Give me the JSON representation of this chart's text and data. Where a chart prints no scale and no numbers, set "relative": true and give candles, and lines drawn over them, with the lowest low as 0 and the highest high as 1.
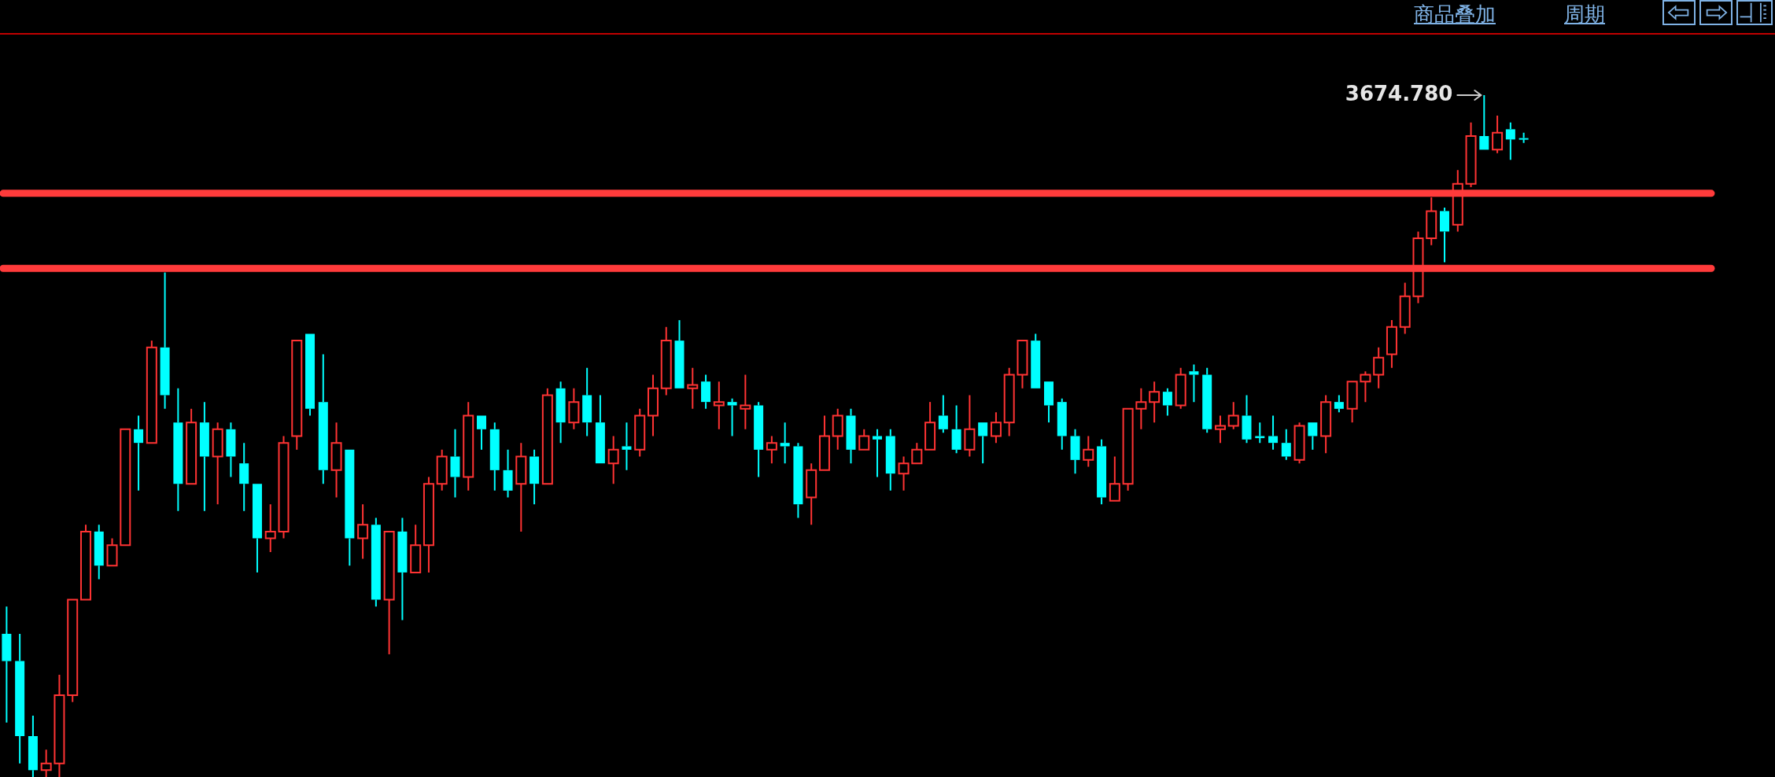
{
  "chart_data": {
    "type": "candlestick",
    "relative": true,
    "annotations": [
      "商品叠加",
      "周期",
      "3674.780"
    ],
    "ref_lines": [
      {
        "axis": "y",
        "value": 0.746,
        "color": "#ff3b3b"
      },
      {
        "axis": "y",
        "value": 0.856,
        "color": "#ff3b3b"
      }
    ],
    "categories": [
      null,
      null,
      null,
      null,
      null,
      null,
      null,
      null,
      null,
      null,
      null,
      null,
      null,
      null,
      null,
      null,
      null,
      null,
      null,
      null,
      null,
      null,
      null,
      null,
      null,
      null,
      null,
      null,
      null,
      null,
      null,
      null,
      null,
      null,
      null,
      null,
      null,
      null,
      null,
      null,
      null,
      null,
      null,
      null,
      null,
      null,
      null,
      null,
      null,
      null,
      null,
      null,
      null,
      null,
      null,
      null,
      null,
      null,
      null,
      null,
      null,
      null,
      null,
      null,
      null,
      null,
      null,
      null,
      null,
      null,
      null,
      null,
      null,
      null,
      null,
      null,
      null,
      null,
      null,
      null,
      null,
      null,
      null,
      null,
      null,
      null,
      null,
      null,
      null,
      null,
      null,
      null,
      null,
      null,
      null,
      null,
      null,
      null,
      null,
      null,
      null,
      null,
      null,
      null,
      null,
      null,
      null,
      null,
      null,
      null,
      null,
      null,
      null,
      null,
      null,
      null
    ],
    "ohlc": [
      [
        0.21,
        0.25,
        0.08,
        0.17
      ],
      [
        0.17,
        0.21,
        0.02,
        0.06
      ],
      [
        0.06,
        0.09,
        0,
        0.01
      ],
      [
        0.01,
        0.04,
        0,
        0.02
      ],
      [
        0.02,
        0.15,
        0,
        0.12
      ],
      [
        0.12,
        0.26,
        0.11,
        0.26
      ],
      [
        0.26,
        0.37,
        0.26,
        0.36
      ],
      [
        0.36,
        0.37,
        0.29,
        0.31
      ],
      [
        0.31,
        0.35,
        0.31,
        0.34
      ],
      [
        0.34,
        0.51,
        0.34,
        0.51
      ],
      [
        0.51,
        0.53,
        0.42,
        0.49
      ],
      [
        0.49,
        0.64,
        0.49,
        0.63
      ],
      [
        0.63,
        0.74,
        0.54,
        0.56
      ],
      [
        0.52,
        0.57,
        0.39,
        0.43
      ],
      [
        0.43,
        0.54,
        0.43,
        0.52
      ],
      [
        0.52,
        0.55,
        0.39,
        0.47
      ],
      [
        0.47,
        0.52,
        0.4,
        0.51
      ],
      [
        0.51,
        0.52,
        0.44,
        0.47
      ],
      [
        0.46,
        0.49,
        0.39,
        0.43
      ],
      [
        0.43,
        0.43,
        0.3,
        0.35
      ],
      [
        0.35,
        0.4,
        0.33,
        0.36
      ],
      [
        0.36,
        0.5,
        0.35,
        0.49
      ],
      [
        0.5,
        0.64,
        0.48,
        0.64
      ],
      [
        0.65,
        0.65,
        0.53,
        0.54
      ],
      [
        0.55,
        0.62,
        0.43,
        0.45
      ],
      [
        0.45,
        0.52,
        0.41,
        0.49
      ],
      [
        0.48,
        0.48,
        0.31,
        0.35
      ],
      [
        0.35,
        0.4,
        0.32,
        0.37
      ],
      [
        0.37,
        0.38,
        0.25,
        0.26
      ],
      [
        0.26,
        0.36,
        0.18,
        0.36
      ],
      [
        0.36,
        0.38,
        0.23,
        0.3
      ],
      [
        0.3,
        0.37,
        0.3,
        0.34
      ],
      [
        0.34,
        0.44,
        0.3,
        0.43
      ],
      [
        0.43,
        0.48,
        0.42,
        0.47
      ],
      [
        0.47,
        0.51,
        0.41,
        0.44
      ],
      [
        0.44,
        0.55,
        0.42,
        0.53
      ],
      [
        0.53,
        0.53,
        0.48,
        0.51
      ],
      [
        0.51,
        0.52,
        0.42,
        0.45
      ],
      [
        0.45,
        0.48,
        0.41,
        0.42
      ],
      [
        0.43,
        0.49,
        0.36,
        0.47
      ],
      [
        0.47,
        0.48,
        0.4,
        0.43
      ],
      [
        0.43,
        0.57,
        0.43,
        0.56
      ],
      [
        0.57,
        0.58,
        0.49,
        0.52
      ],
      [
        0.52,
        0.57,
        0.51,
        0.55
      ],
      [
        0.56,
        0.6,
        0.5,
        0.52
      ],
      [
        0.52,
        0.56,
        0.46,
        0.46
      ],
      [
        0.46,
        0.5,
        0.43,
        0.48
      ],
      [
        0.485,
        0.52,
        0.45,
        0.48
      ],
      [
        0.48,
        0.54,
        0.47,
        0.53
      ],
      [
        0.53,
        0.59,
        0.5,
        0.57
      ],
      [
        0.57,
        0.66,
        0.56,
        0.64
      ],
      [
        0.64,
        0.67,
        0.57,
        0.57
      ],
      [
        0.57,
        0.6,
        0.54,
        0.575
      ],
      [
        0.58,
        0.59,
        0.54,
        0.55
      ],
      [
        0.545,
        0.58,
        0.51,
        0.55
      ],
      [
        0.55,
        0.555,
        0.5,
        0.545
      ],
      [
        0.54,
        0.59,
        0.51,
        0.545
      ],
      [
        0.545,
        0.55,
        0.44,
        0.48
      ],
      [
        0.48,
        0.5,
        0.46,
        0.49
      ],
      [
        0.49,
        0.52,
        0.46,
        0.485
      ],
      [
        0.485,
        0.49,
        0.38,
        0.4
      ],
      [
        0.41,
        0.46,
        0.37,
        0.45
      ],
      [
        0.45,
        0.53,
        0.45,
        0.5
      ],
      [
        0.5,
        0.54,
        0.48,
        0.53
      ],
      [
        0.53,
        0.54,
        0.46,
        0.48
      ],
      [
        0.48,
        0.51,
        0.48,
        0.5
      ],
      [
        0.5,
        0.51,
        0.44,
        0.495
      ],
      [
        0.5,
        0.51,
        0.42,
        0.445
      ],
      [
        0.445,
        0.47,
        0.42,
        0.46
      ],
      [
        0.46,
        0.49,
        0.46,
        0.48
      ],
      [
        0.48,
        0.55,
        0.48,
        0.52
      ],
      [
        0.53,
        0.56,
        0.505,
        0.51
      ],
      [
        0.51,
        0.545,
        0.475,
        0.48
      ],
      [
        0.48,
        0.56,
        0.47,
        0.51
      ],
      [
        0.52,
        0.52,
        0.46,
        0.5
      ],
      [
        0.5,
        0.535,
        0.49,
        0.52
      ],
      [
        0.52,
        0.6,
        0.5,
        0.59
      ],
      [
        0.59,
        0.64,
        0.57,
        0.64
      ],
      [
        0.64,
        0.65,
        0.57,
        0.57
      ],
      [
        0.58,
        0.58,
        0.52,
        0.545
      ],
      [
        0.55,
        0.555,
        0.48,
        0.5
      ],
      [
        0.5,
        0.51,
        0.445,
        0.465
      ],
      [
        0.465,
        0.5,
        0.455,
        0.48
      ],
      [
        0.485,
        0.495,
        0.4,
        0.41
      ],
      [
        0.405,
        0.47,
        0.405,
        0.43
      ],
      [
        0.43,
        0.54,
        0.42,
        0.54
      ],
      [
        0.54,
        0.57,
        0.51,
        0.55
      ],
      [
        0.55,
        0.58,
        0.52,
        0.565
      ],
      [
        0.565,
        0.57,
        0.53,
        0.545
      ],
      [
        0.545,
        0.6,
        0.54,
        0.59
      ],
      [
        0.595,
        0.605,
        0.55,
        0.59
      ],
      [
        0.59,
        0.6,
        0.505,
        0.51
      ],
      [
        0.51,
        0.53,
        0.49,
        0.515
      ],
      [
        0.515,
        0.55,
        0.51,
        0.53
      ],
      [
        0.53,
        0.56,
        0.49,
        0.495
      ],
      [
        0.5,
        0.52,
        0.49,
        0.497
      ],
      [
        0.5,
        0.53,
        0.48,
        0.49
      ],
      [
        0.49,
        0.51,
        0.465,
        0.47
      ],
      [
        0.465,
        0.52,
        0.46,
        0.515
      ],
      [
        0.52,
        0.52,
        0.48,
        0.5
      ],
      [
        0.5,
        0.56,
        0.475,
        0.55
      ],
      [
        0.55,
        0.56,
        0.535,
        0.54
      ],
      [
        0.54,
        0.58,
        0.52,
        0.58
      ],
      [
        0.58,
        0.595,
        0.55,
        0.59
      ],
      [
        0.59,
        0.63,
        0.57,
        0.615
      ],
      [
        0.62,
        0.67,
        0.6,
        0.66
      ],
      [
        0.66,
        0.725,
        0.65,
        0.705
      ],
      [
        0.705,
        0.8,
        0.695,
        0.79
      ],
      [
        0.79,
        0.85,
        0.78,
        0.83
      ],
      [
        0.83,
        0.835,
        0.755,
        0.8
      ],
      [
        0.81,
        0.89,
        0.8,
        0.87
      ],
      [
        0.87,
        0.96,
        0.865,
        0.94
      ],
      [
        0.94,
        1,
        0.92,
        0.92
      ],
      [
        0.92,
        0.97,
        0.915,
        0.945
      ],
      [
        0.95,
        0.96,
        0.905,
        0.935
      ],
      [
        0.937,
        0.945,
        0.93,
        0.935
      ]
    ],
    "colors": [
      "#00ffff",
      "#00ffff",
      "#00ffff",
      "#ff3333",
      "#ff3333",
      "#ff3333",
      "#ff3333",
      "#00ffff",
      "#ff3333",
      "#ff3333",
      "#00ffff",
      "#ff3333",
      "#00ffff",
      "#00ffff",
      "#ff3333",
      "#00ffff",
      "#ff3333",
      "#00ffff",
      "#00ffff",
      "#00ffff",
      "#ff3333",
      "#ff3333",
      "#ff3333",
      "#00ffff",
      "#00ffff",
      "#ff3333",
      "#00ffff",
      "#ff3333",
      "#00ffff",
      "#ff3333",
      "#00ffff",
      "#ff3333",
      "#ff3333",
      "#ff3333",
      "#00ffff",
      "#ff3333",
      "#00ffff",
      "#00ffff",
      "#00ffff",
      "#ff3333",
      "#00ffff",
      "#ff3333",
      "#00ffff",
      "#ff3333",
      "#00ffff",
      "#00ffff",
      "#ff3333",
      "#00ffff",
      "#ff3333",
      "#ff3333",
      "#ff3333",
      "#00ffff",
      "#ff3333",
      "#00ffff",
      "#ff3333",
      "#00ffff",
      "#ff3333",
      "#00ffff",
      "#ff3333",
      "#00ffff",
      "#00ffff",
      "#ff3333",
      "#ff3333",
      "#ff3333",
      "#00ffff",
      "#ff3333",
      "#00ffff",
      "#00ffff",
      "#ff3333",
      "#ff3333",
      "#ff3333",
      "#00ffff",
      "#00ffff",
      "#ff3333",
      "#00ffff",
      "#ff3333",
      "#ff3333",
      "#ff3333",
      "#00ffff",
      "#00ffff",
      "#00ffff",
      "#00ffff",
      "#ff3333",
      "#00ffff",
      "#ff3333",
      "#ff3333",
      "#ff3333",
      "#ff3333",
      "#00ffff",
      "#ff3333",
      "#00ffff",
      "#00ffff",
      "#ff3333",
      "#ff3333",
      "#00ffff",
      "#00ffff",
      "#00ffff",
      "#00ffff",
      "#ff3333",
      "#00ffff",
      "#ff3333",
      "#00ffff",
      "#ff3333",
      "#ff3333",
      "#ff3333",
      "#ff3333",
      "#ff3333",
      "#ff3333",
      "#ff3333",
      "#00ffff",
      "#ff3333",
      "#ff3333",
      "#00ffff",
      "#ff3333",
      "#00ffff",
      "#00ffff"
    ]
  }
}
